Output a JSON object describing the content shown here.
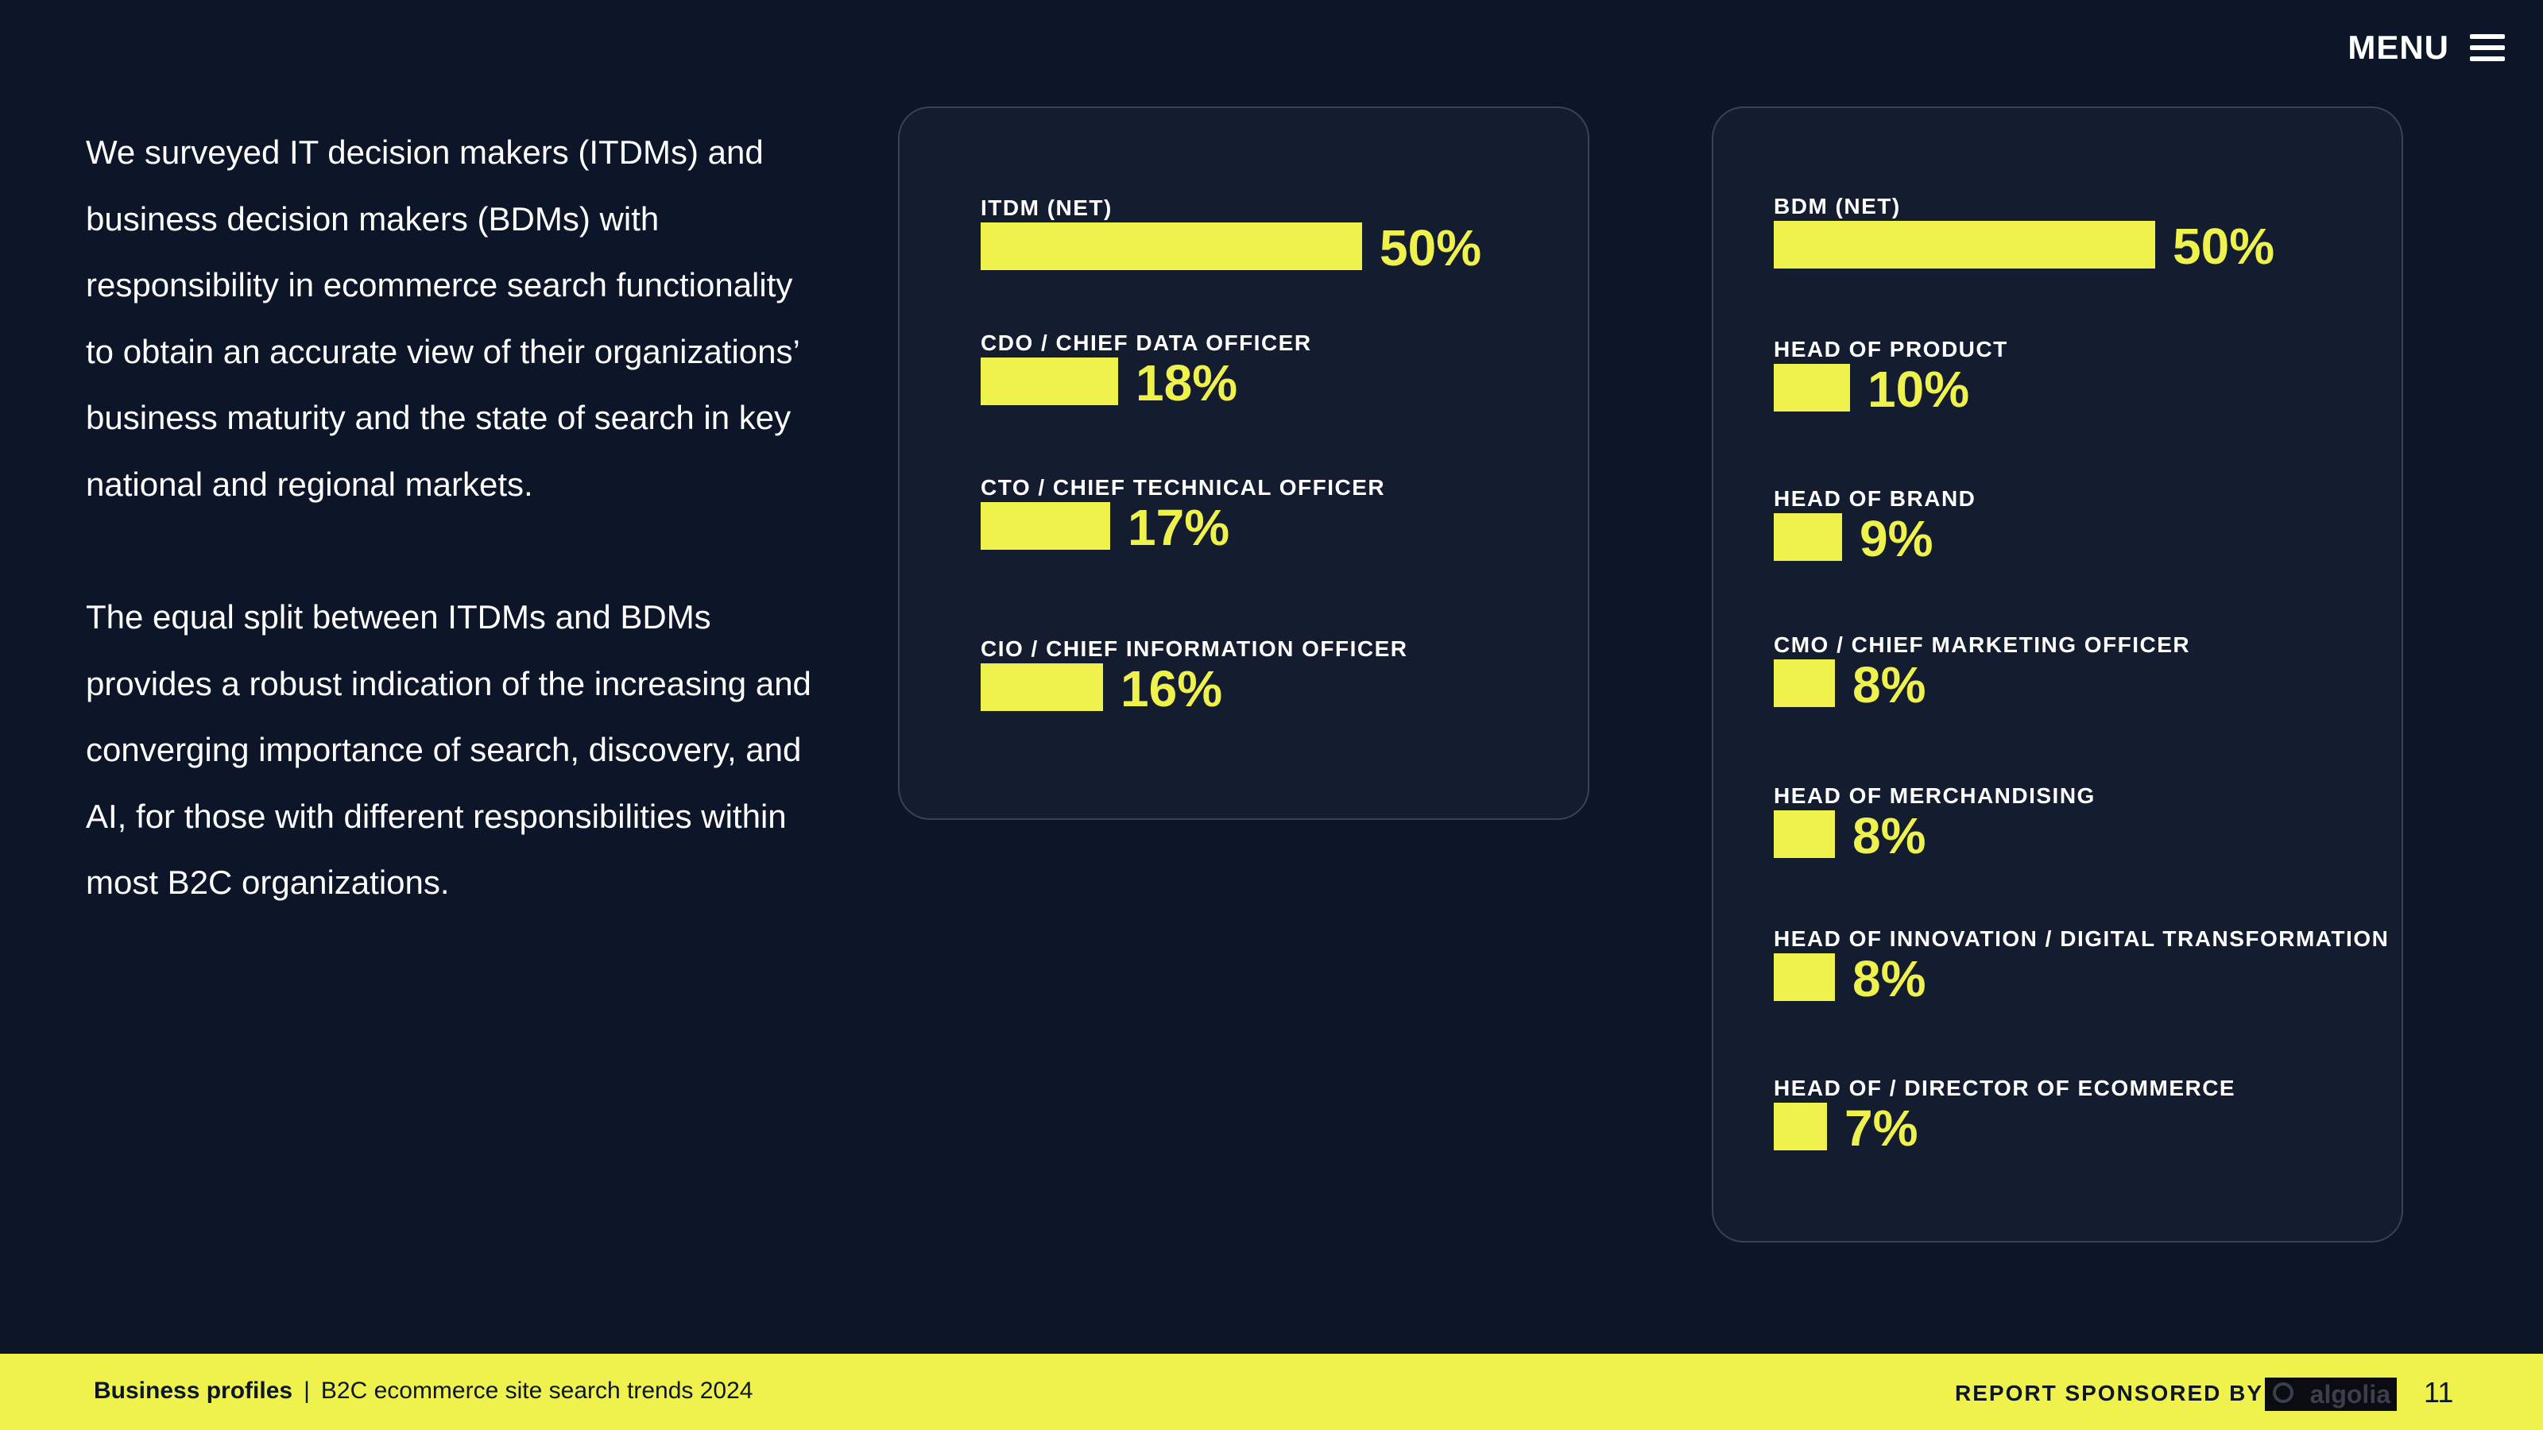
{
  "menu": {
    "label": "MENU"
  },
  "intro": {
    "paragraph_1": "We surveyed IT decision makers (ITDMs) and business decision makers (BDMs) with responsibility in ecommerce search functionality to obtain an accurate view of their organizations’ business maturity and the state of search in key national and regional markets.",
    "paragraph_2": "The equal split between ITDMs and BDMs provides a robust indication of the increasing and converging importance of search, discovery, and AI, for those with different responsibilities within most B2C organizations."
  },
  "colors": {
    "background": "#0d1628",
    "card": "#141d30",
    "accent": "#eff24d",
    "text": "#ffffff"
  },
  "chart_data": [
    {
      "type": "bar",
      "orientation": "horizontal",
      "title": "",
      "categories": [
        "ITDM (NET)",
        "CDO / CHIEF DATA OFFICER",
        "CTO / CHIEF TECHNICAL OFFICER",
        "CIO / CHIEF INFORMATION OFFICER"
      ],
      "values": [
        50,
        18,
        17,
        16
      ],
      "value_labels": [
        "50%",
        "18%",
        "17%",
        "16%"
      ],
      "unit": "%"
    },
    {
      "type": "bar",
      "orientation": "horizontal",
      "title": "",
      "categories": [
        "BDM (NET)",
        "HEAD OF PRODUCT",
        "HEAD OF BRAND",
        "CMO / CHIEF MARKETING OFFICER",
        "HEAD OF MERCHANDISING",
        "HEAD OF INNOVATION / DIGITAL TRANSFORMATION",
        "HEAD OF / DIRECTOR OF ECOMMERCE"
      ],
      "values": [
        50,
        10,
        9,
        8,
        8,
        8,
        7
      ],
      "value_labels": [
        "50%",
        "10%",
        "9%",
        "8%",
        "8%",
        "8%",
        "7%"
      ],
      "unit": "%"
    }
  ],
  "footer": {
    "section": "Business profiles",
    "separator": "|",
    "report_title": "B2C ecommerce site search trends 2024",
    "sponsor_label": "REPORT SPONSORED BY",
    "sponsor_name": "algolia",
    "page_number": "11"
  }
}
